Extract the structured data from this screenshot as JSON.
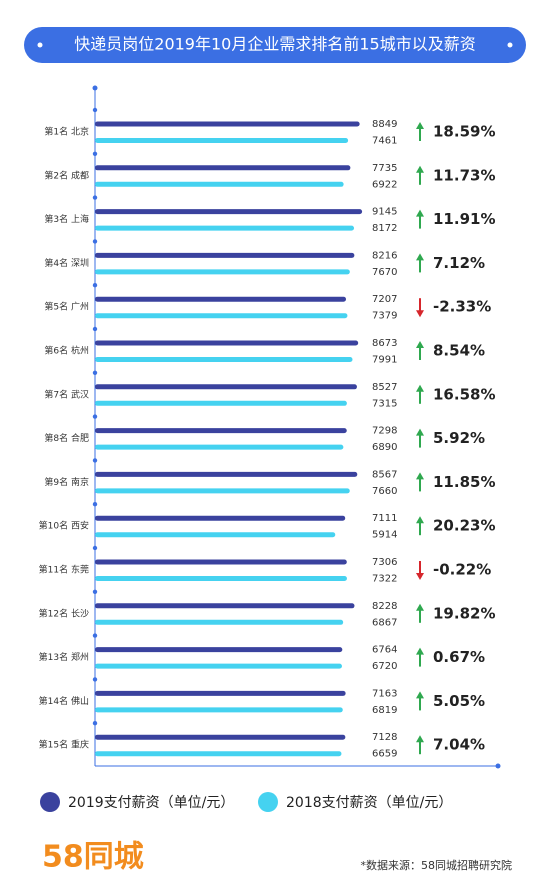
{
  "chart_data": {
    "type": "bar",
    "title": "快递员岗位2019年10月企业需求排名前15城市以及薪资",
    "categories": [
      "第1名 北京",
      "第2名 成都",
      "第3名 上海",
      "第4名 深圳",
      "第5名 广州",
      "第6名 杭州",
      "第7名 武汉",
      "第8名 合肥",
      "第9名 南京",
      "第10名 西安",
      "第11名 东莞",
      "第12名 长沙",
      "第13名 郑州",
      "第14名 佛山",
      "第15名 重庆"
    ],
    "series": [
      {
        "name": "2019支付薪资（单位/元）",
        "color": "#3a429e",
        "values": [
          8849,
          7735,
          9145,
          8216,
          7207,
          8673,
          8527,
          7298,
          8567,
          7111,
          7306,
          8228,
          6764,
          7163,
          7128
        ]
      },
      {
        "name": "2018支付薪资（单位/元）",
        "color": "#45d2f0",
        "values": [
          7461,
          6922,
          8172,
          7670,
          7379,
          7991,
          7315,
          6890,
          7660,
          5914,
          7322,
          6867,
          6720,
          6819,
          6659
        ]
      }
    ],
    "changes": [
      "18.59%",
      "11.73%",
      "11.91%",
      "7.12%",
      "-2.33%",
      "8.54%",
      "16.58%",
      "5.92%",
      "11.85%",
      "20.23%",
      "-0.22%",
      "19.82%",
      "0.67%",
      "5.05%",
      "7.04%"
    ],
    "xlim": [
      -23000,
      25500
    ],
    "logo": "58同城",
    "source": "*数据来源：58同城招聘研究院"
  }
}
